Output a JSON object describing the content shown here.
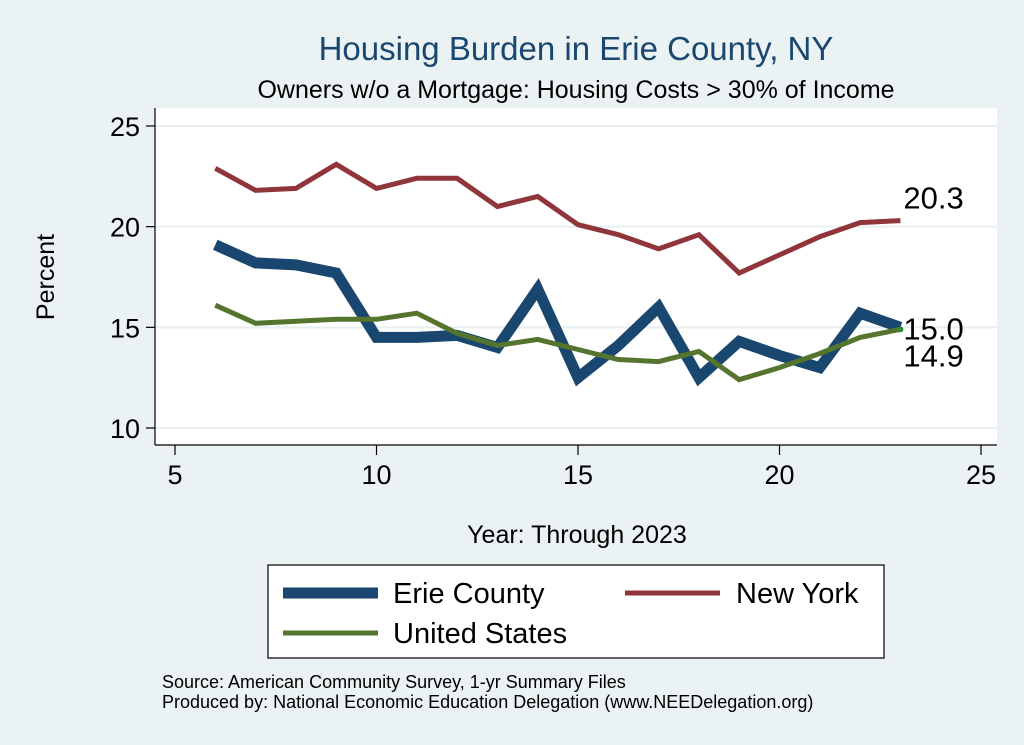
{
  "chart_data": {
    "type": "line",
    "title": "Housing Burden in Erie County, NY",
    "subtitle": "Owners w/o a Mortgage: Housing Costs > 30% of Income",
    "xlabel": "Year: Through 2023",
    "ylabel": "Percent",
    "xlim": [
      5,
      25
    ],
    "ylim": [
      10,
      25
    ],
    "x_ticks": [
      "5",
      "10",
      "15",
      "20",
      "25"
    ],
    "y_ticks": [
      "10",
      "15",
      "20",
      "25"
    ],
    "grid": true,
    "legend_position": "bottom",
    "series": [
      {
        "name": "Erie County",
        "color": "#1a476f",
        "x": [
          6,
          7,
          8,
          9,
          10,
          11,
          12,
          13,
          14,
          15,
          16,
          17,
          18,
          19,
          20,
          21,
          22,
          23
        ],
        "values": [
          19.1,
          18.2,
          18.1,
          17.7,
          14.5,
          14.5,
          14.6,
          14.0,
          16.9,
          12.5,
          14.1,
          16.0,
          12.5,
          14.3,
          13.6,
          13.0,
          15.7,
          15.0
        ],
        "end_label": "15.0"
      },
      {
        "name": "New York",
        "color": "#90353b",
        "x": [
          6,
          7,
          8,
          9,
          10,
          11,
          12,
          13,
          14,
          15,
          16,
          17,
          18,
          19,
          20,
          21,
          22,
          23
        ],
        "values": [
          22.9,
          21.8,
          21.9,
          23.1,
          21.9,
          22.4,
          22.4,
          21.0,
          21.5,
          20.1,
          19.6,
          18.9,
          19.6,
          17.7,
          18.6,
          19.5,
          20.2,
          20.3
        ],
        "end_label": "20.3"
      },
      {
        "name": "United States",
        "color": "#55752f",
        "x": [
          6,
          7,
          8,
          9,
          10,
          11,
          12,
          13,
          14,
          15,
          16,
          17,
          18,
          19,
          20,
          21,
          22,
          23
        ],
        "values": [
          16.1,
          15.2,
          15.3,
          15.4,
          15.4,
          15.7,
          14.7,
          14.1,
          14.4,
          13.9,
          13.4,
          13.3,
          13.8,
          12.4,
          13.0,
          13.7,
          14.5,
          14.9
        ],
        "end_label": "14.9"
      }
    ]
  },
  "footer": {
    "source": "Source: American Community Survey, 1-yr Summary Files",
    "produced_by": "Produced by: National Economic Education Delegation (www.NEEDelegation.org)"
  }
}
